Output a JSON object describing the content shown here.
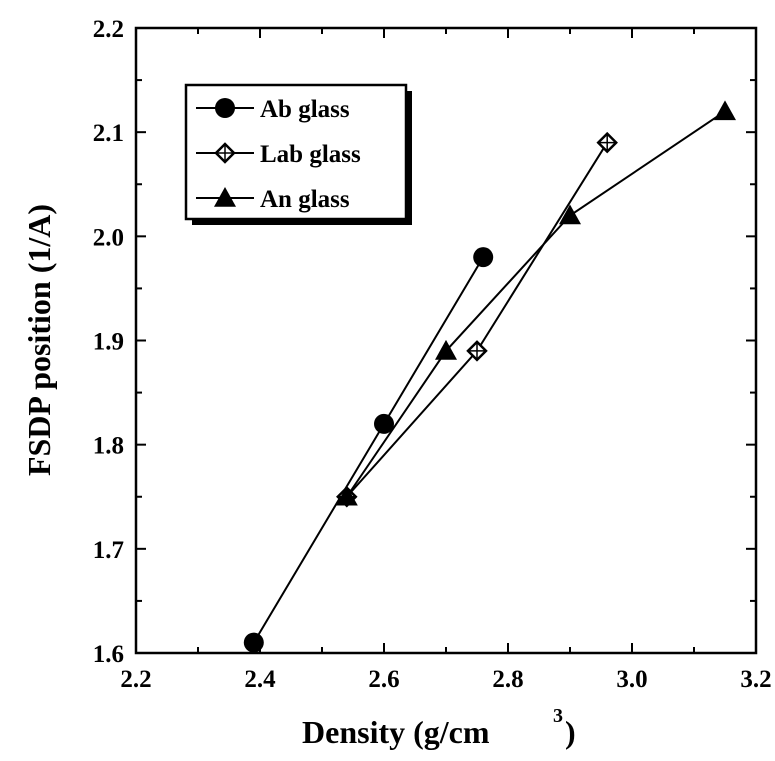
{
  "chart_data": {
    "type": "line",
    "title": "",
    "xlabel": "Density (g/cm",
    "xlabel_superscript": "3",
    "xlabel_close": ")",
    "ylabel": "FSDP position (1/A)",
    "xlim": [
      2.2,
      3.2
    ],
    "ylim": [
      1.6,
      2.2
    ],
    "xticks": [
      "2.2",
      "2.4",
      "2.6",
      "2.8",
      "3.0",
      "3.2"
    ],
    "yticks": [
      "1.6",
      "1.7",
      "1.8",
      "1.9",
      "2.0",
      "2.1",
      "2.2"
    ],
    "grid": false,
    "legend_position": "top-left",
    "series": [
      {
        "name": "Ab glass",
        "marker": "circle",
        "color": "#000000",
        "points": [
          [
            2.39,
            1.61
          ],
          [
            2.6,
            1.82
          ],
          [
            2.76,
            1.98
          ]
        ]
      },
      {
        "name": "Lab glass",
        "marker": "diamond",
        "color": "#000000",
        "points": [
          [
            2.54,
            1.75
          ],
          [
            2.75,
            1.89
          ],
          [
            2.96,
            2.09
          ]
        ]
      },
      {
        "name": "An glass",
        "marker": "triangle",
        "color": "#000000",
        "points": [
          [
            2.54,
            1.75
          ],
          [
            2.7,
            1.89
          ],
          [
            2.9,
            2.02
          ],
          [
            3.15,
            2.12
          ]
        ]
      }
    ]
  }
}
